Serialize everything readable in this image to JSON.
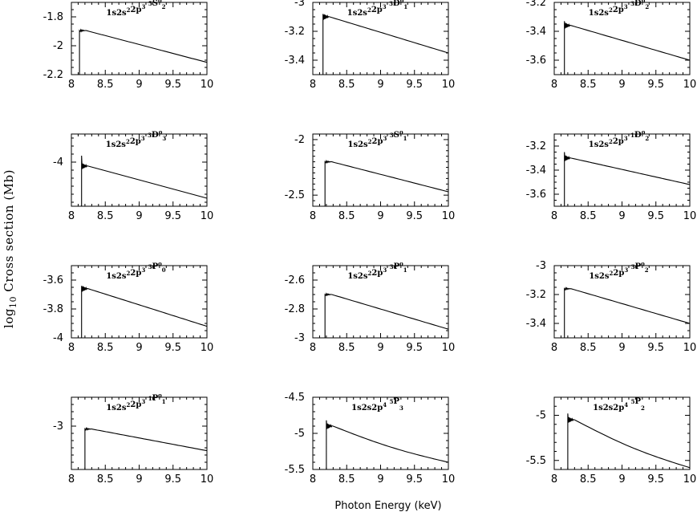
{
  "figure": {
    "xlabel": "Photon Energy (keV)",
    "ylabel_prefix": "log",
    "ylabel_sub": "10",
    "ylabel_rest": " Cross section  (Mb)"
  },
  "chart_data": [
    {
      "type": "line",
      "title": [
        {
          "t": "1s2s"
        },
        {
          "t": "2",
          "s": 1
        },
        {
          "t": "2p"
        },
        {
          "t": "3",
          "s": 1
        },
        {
          "t": " "
        },
        {
          "t": "5",
          "s": 1
        },
        {
          "t": "S"
        },
        {
          "t": "o",
          "s": 1
        },
        {
          "t": "2",
          "s": 2
        }
      ],
      "xlim": [
        8,
        10
      ],
      "ylim": [
        -2.2,
        -1.7
      ],
      "xticks": [
        "8",
        "8.5",
        "9",
        "9.5",
        "10"
      ],
      "yticks": [
        "-1.8",
        "-2",
        "-2.2"
      ],
      "onset": 8.12,
      "onset_y": -1.895,
      "end_y": -2.115,
      "bottom": true
    },
    {
      "type": "line",
      "title": [
        {
          "t": "1s2s"
        },
        {
          "t": "2",
          "s": 1
        },
        {
          "t": "2p"
        },
        {
          "t": "3",
          "s": 1
        },
        {
          "t": " "
        },
        {
          "t": "3",
          "s": 1
        },
        {
          "t": "D"
        },
        {
          "t": "o",
          "s": 1
        },
        {
          "t": "1",
          "s": 2
        }
      ],
      "xlim": [
        8,
        10
      ],
      "ylim": [
        -3.5,
        -3.0
      ],
      "xticks": [
        "8",
        "8.5",
        "9",
        "9.5",
        "10"
      ],
      "yticks": [
        "-3",
        "-3.2",
        "-3.4"
      ],
      "onset": 8.15,
      "onset_y": -3.1,
      "end_y": -3.35,
      "spike": -3.08
    },
    {
      "type": "line",
      "title": [
        {
          "t": "1s2s"
        },
        {
          "t": "2",
          "s": 1
        },
        {
          "t": "2p"
        },
        {
          "t": "3",
          "s": 1
        },
        {
          "t": " "
        },
        {
          "t": "3",
          "s": 1
        },
        {
          "t": "D"
        },
        {
          "t": "o",
          "s": 1
        },
        {
          "t": "2",
          "s": 2
        }
      ],
      "xlim": [
        8,
        10
      ],
      "ylim": [
        -3.7,
        -3.2
      ],
      "xticks": [
        "8",
        "8.5",
        "9",
        "9.5",
        "10"
      ],
      "yticks": [
        "-3.2",
        "-3.4",
        "-3.6"
      ],
      "onset": 8.15,
      "onset_y": -3.36,
      "end_y": -3.6,
      "spike": -3.33
    },
    {
      "type": "line",
      "title": [
        {
          "t": "1s2s"
        },
        {
          "t": "2",
          "s": 1
        },
        {
          "t": "2p"
        },
        {
          "t": "3",
          "s": 1
        },
        {
          "t": " "
        },
        {
          "t": "3",
          "s": 1
        },
        {
          "t": "D"
        },
        {
          "t": "o",
          "s": 1
        },
        {
          "t": "3",
          "s": 2
        }
      ],
      "xlim": [
        8,
        10
      ],
      "ylim": [
        -4.55,
        -3.65
      ],
      "xticks": [
        "8",
        "8.5",
        "9",
        "9.5",
        "10"
      ],
      "yticks": [
        "-4"
      ],
      "onset": 8.15,
      "onset_y": -4.05,
      "end_y": -4.45,
      "spike": -3.92
    },
    {
      "type": "line",
      "title": [
        {
          "t": "1s2s"
        },
        {
          "t": "2",
          "s": 1
        },
        {
          "t": "2p"
        },
        {
          "t": "3",
          "s": 1
        },
        {
          "t": " "
        },
        {
          "t": "3",
          "s": 1
        },
        {
          "t": "S"
        },
        {
          "t": "o",
          "s": 1
        },
        {
          "t": "1",
          "s": 2
        }
      ],
      "xlim": [
        8,
        10
      ],
      "ylim": [
        -2.6,
        -1.95
      ],
      "xticks": [
        "8",
        "8.5",
        "9",
        "9.5",
        "10"
      ],
      "yticks": [
        "-2",
        "-2.5"
      ],
      "onset": 8.18,
      "onset_y": -2.2,
      "end_y": -2.47
    },
    {
      "type": "line",
      "title": [
        {
          "t": "1s2s"
        },
        {
          "t": "2",
          "s": 1
        },
        {
          "t": "2p"
        },
        {
          "t": "3",
          "s": 1
        },
        {
          "t": " "
        },
        {
          "t": "1",
          "s": 1
        },
        {
          "t": "D"
        },
        {
          "t": "o",
          "s": 1
        },
        {
          "t": "2",
          "s": 2
        }
      ],
      "xlim": [
        8,
        10
      ],
      "ylim": [
        -3.7,
        -3.1
      ],
      "xticks": [
        "8",
        "8.5",
        "9",
        "9.5",
        "10"
      ],
      "yticks": [
        "-3.2",
        "-3.4",
        "-3.6"
      ],
      "onset": 8.15,
      "onset_y": -3.3,
      "end_y": -3.52,
      "spike": -3.25
    },
    {
      "type": "line",
      "title": [
        {
          "t": "1s2s"
        },
        {
          "t": "2",
          "s": 1
        },
        {
          "t": "2p"
        },
        {
          "t": "3",
          "s": 1
        },
        {
          "t": " "
        },
        {
          "t": "3",
          "s": 1
        },
        {
          "t": "P"
        },
        {
          "t": "o",
          "s": 1
        },
        {
          "t": "0",
          "s": 2
        }
      ],
      "xlim": [
        8,
        10
      ],
      "ylim": [
        -4.0,
        -3.5
      ],
      "xticks": [
        "8",
        "8.5",
        "9",
        "9.5",
        "10"
      ],
      "yticks": [
        "-3.6",
        "-3.8",
        "-4"
      ],
      "onset": 8.15,
      "onset_y": -3.66,
      "end_y": -3.92,
      "spike": -3.64,
      "bottom": true
    },
    {
      "type": "line",
      "title": [
        {
          "t": "1s2s"
        },
        {
          "t": "2",
          "s": 1
        },
        {
          "t": "2p"
        },
        {
          "t": "3",
          "s": 1
        },
        {
          "t": " "
        },
        {
          "t": "3",
          "s": 1
        },
        {
          "t": "P"
        },
        {
          "t": "o",
          "s": 1
        },
        {
          "t": "1",
          "s": 2
        }
      ],
      "xlim": [
        8,
        10
      ],
      "ylim": [
        -3.0,
        -2.5
      ],
      "xticks": [
        "8",
        "8.5",
        "9",
        "9.5",
        "10"
      ],
      "yticks": [
        "-2.6",
        "-2.8",
        "-3"
      ],
      "onset": 8.18,
      "onset_y": -2.7,
      "end_y": -2.94,
      "bottom": true
    },
    {
      "type": "line",
      "title": [
        {
          "t": "1s2s"
        },
        {
          "t": "2",
          "s": 1
        },
        {
          "t": "2p"
        },
        {
          "t": "3",
          "s": 1
        },
        {
          "t": " "
        },
        {
          "t": "3",
          "s": 1
        },
        {
          "t": "P"
        },
        {
          "t": "o",
          "s": 1
        },
        {
          "t": "2",
          "s": 2
        }
      ],
      "xlim": [
        8,
        10
      ],
      "ylim": [
        -3.5,
        -3.0
      ],
      "xticks": [
        "8",
        "8.5",
        "9",
        "9.5",
        "10"
      ],
      "yticks": [
        "-3",
        "-3.2",
        "-3.4"
      ],
      "onset": 8.15,
      "onset_y": -3.16,
      "end_y": -3.4
    },
    {
      "type": "line",
      "title": [
        {
          "t": "1s2s"
        },
        {
          "t": "2",
          "s": 1
        },
        {
          "t": "2p"
        },
        {
          "t": "3",
          "s": 1
        },
        {
          "t": " "
        },
        {
          "t": "1",
          "s": 1
        },
        {
          "t": "P"
        },
        {
          "t": "o",
          "s": 1
        },
        {
          "t": "1",
          "s": 2
        }
      ],
      "xlim": [
        8,
        10
      ],
      "ylim": [
        -3.3,
        -2.8
      ],
      "xticks": [
        "8",
        "8.5",
        "9",
        "9.5",
        "10"
      ],
      "yticks": [
        "-3"
      ],
      "onset": 8.2,
      "onset_y": -3.02,
      "end_y": -3.17
    },
    {
      "type": "line",
      "title": [
        {
          "t": "1s2s2p"
        },
        {
          "t": "4",
          "s": 1
        },
        {
          "t": " "
        },
        {
          "t": "5",
          "s": 1
        },
        {
          "t": "P"
        },
        {
          "t": "3",
          "s": 2
        }
      ],
      "xlim": [
        8,
        10
      ],
      "ylim": [
        -5.5,
        -4.5
      ],
      "xticks": [
        "8",
        "8.5",
        "9",
        "9.5",
        "10"
      ],
      "yticks": [
        "-4.5",
        "-5",
        "-5.5"
      ],
      "onset": 8.2,
      "onset_y": -4.9,
      "end_y": -5.4,
      "spike": -4.82,
      "curved": true,
      "bottom": true
    },
    {
      "type": "line",
      "title": [
        {
          "t": "1s2s2p"
        },
        {
          "t": "4",
          "s": 1
        },
        {
          "t": " "
        },
        {
          "t": "5",
          "s": 1
        },
        {
          "t": "P"
        },
        {
          "t": "2",
          "s": 2
        }
      ],
      "xlim": [
        8,
        10
      ],
      "ylim": [
        -5.6,
        -4.8
      ],
      "xticks": [
        "8",
        "8.5",
        "9",
        "9.5",
        "10"
      ],
      "yticks": [
        "-5",
        "-5.5"
      ],
      "onset": 8.2,
      "onset_y": -5.05,
      "end_y": -5.58,
      "spike": -4.98,
      "curved": true,
      "bottom": true
    }
  ]
}
